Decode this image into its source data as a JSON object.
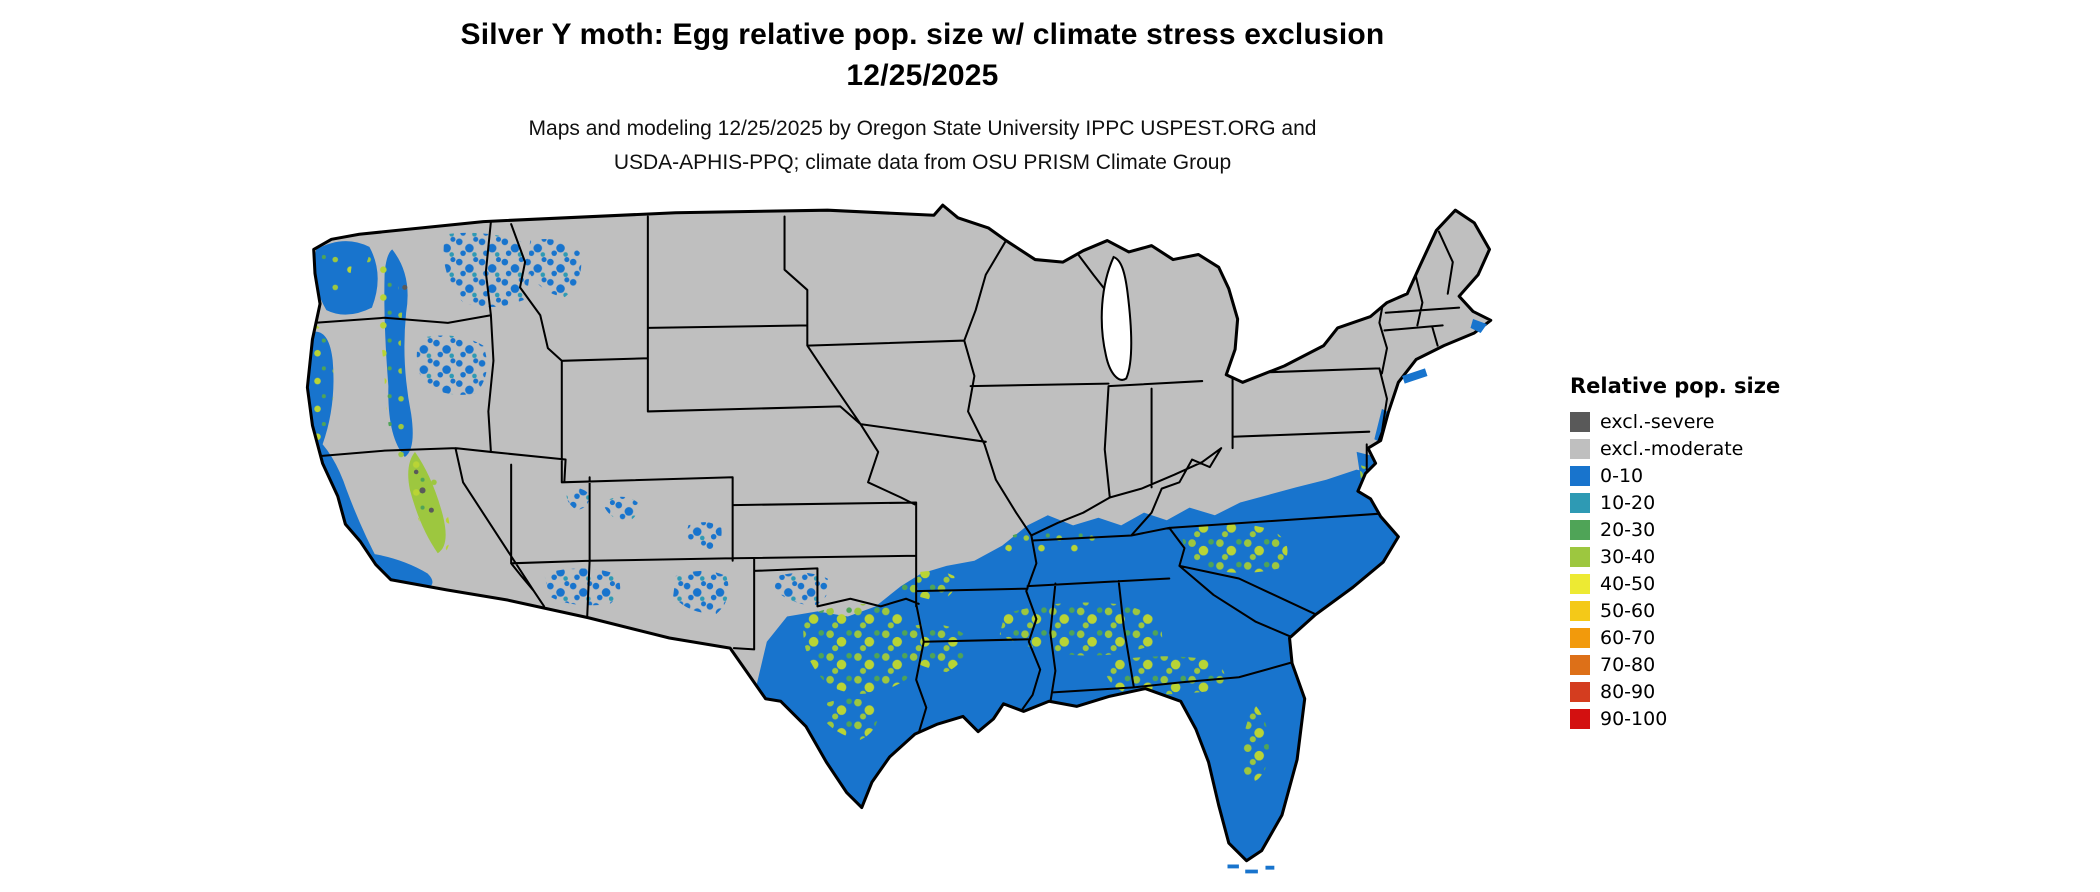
{
  "header": {
    "title": "Silver Y moth: Egg relative pop. size w/ climate stress exclusion",
    "date": "12/25/2025",
    "credit_line1": "Maps and modeling 12/25/2025 by Oregon State University IPPC USPEST.ORG and",
    "credit_line2": "USDA-APHIS-PPQ; climate data from OSU PRISM Climate Group"
  },
  "legend": {
    "title": "Relative pop. size",
    "items": [
      {
        "label": "excl.-severe",
        "color": "#595959"
      },
      {
        "label": "excl.-moderate",
        "color": "#bfbfbf"
      },
      {
        "label": "0-10",
        "color": "#1874cd"
      },
      {
        "label": "10-20",
        "color": "#2e9ab4"
      },
      {
        "label": "20-30",
        "color": "#4fa457"
      },
      {
        "label": "30-40",
        "color": "#9dc73f"
      },
      {
        "label": "40-50",
        "color": "#edea33"
      },
      {
        "label": "50-60",
        "color": "#f4c918"
      },
      {
        "label": "60-70",
        "color": "#f29a0c"
      },
      {
        "label": "70-80",
        "color": "#dd7018"
      },
      {
        "label": "80-90",
        "color": "#d43d1f"
      },
      {
        "label": "90-100",
        "color": "#d31010"
      }
    ]
  },
  "map": {
    "region": "Contiguous United States",
    "colors": {
      "background": "#ffffff",
      "excluded_moderate_fill": "#bfbfbf",
      "excluded_severe_fill": "#595959",
      "population_low_fill": "#1874cd",
      "population_mid_fill": "#9dc73f",
      "state_border": "#000000"
    }
  }
}
